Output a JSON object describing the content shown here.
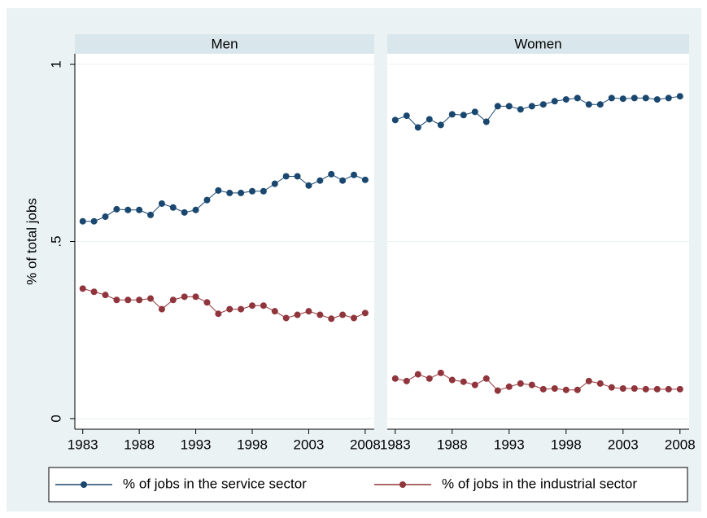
{
  "chart_data": [
    {
      "type": "line",
      "title": "Men",
      "ylabel": "% of total jobs",
      "y_axis_labels": true,
      "x": [
        1983,
        1984,
        1985,
        1986,
        1987,
        1988,
        1989,
        1990,
        1991,
        1992,
        1993,
        1994,
        1995,
        1996,
        1997,
        1998,
        1999,
        2000,
        2001,
        2002,
        2003,
        2004,
        2005,
        2006,
        2007,
        2008
      ],
      "xlim": [
        1982.3,
        2008.8
      ],
      "xticks": [
        1983,
        1988,
        1993,
        1998,
        2003,
        2008
      ],
      "ylim": [
        -0.03,
        1.03
      ],
      "yticks": [
        {
          "value": 0,
          "label": "0"
        },
        {
          "value": 0.5,
          "label": ".5"
        },
        {
          "value": 1,
          "label": "1"
        }
      ],
      "grid": true,
      "legend": "bottom",
      "series": [
        {
          "name": "% of jobs in the service sector",
          "color": "#1a476f",
          "values": [
            0.557,
            0.557,
            0.57,
            0.591,
            0.589,
            0.589,
            0.575,
            0.607,
            0.596,
            0.582,
            0.589,
            0.617,
            0.644,
            0.637,
            0.637,
            0.642,
            0.642,
            0.663,
            0.684,
            0.684,
            0.658,
            0.672,
            0.69,
            0.672,
            0.688,
            0.674
          ]
        },
        {
          "name": "% of jobs in the industrial sector",
          "color": "#90353b",
          "values": [
            0.367,
            0.358,
            0.349,
            0.335,
            0.335,
            0.335,
            0.339,
            0.309,
            0.335,
            0.344,
            0.344,
            0.328,
            0.296,
            0.309,
            0.309,
            0.319,
            0.319,
            0.303,
            0.284,
            0.293,
            0.303,
            0.293,
            0.282,
            0.293,
            0.284,
            0.298
          ]
        }
      ]
    },
    {
      "type": "line",
      "title": "Women",
      "y_axis_labels": false,
      "x": [
        1983,
        1984,
        1985,
        1986,
        1987,
        1988,
        1989,
        1990,
        1991,
        1992,
        1993,
        1994,
        1995,
        1996,
        1997,
        1998,
        1999,
        2000,
        2001,
        2002,
        2003,
        2004,
        2005,
        2006,
        2007,
        2008
      ],
      "xlim": [
        1982.3,
        2008.8
      ],
      "xticks": [
        1983,
        1988,
        1993,
        1998,
        2003,
        2008
      ],
      "ylim": [
        -0.03,
        1.03
      ],
      "yticks": [
        0,
        0.5,
        1
      ],
      "grid": true,
      "series": [
        {
          "color": "#1a476f",
          "values": [
            0.843,
            0.855,
            0.822,
            0.845,
            0.829,
            0.859,
            0.857,
            0.866,
            0.838,
            0.882,
            0.882,
            0.873,
            0.882,
            0.887,
            0.896,
            0.901,
            0.905,
            0.887,
            0.887,
            0.905,
            0.903,
            0.905,
            0.905,
            0.901,
            0.905,
            0.91
          ]
        },
        {
          "color": "#90353b",
          "values": [
            0.113,
            0.106,
            0.125,
            0.113,
            0.129,
            0.109,
            0.104,
            0.095,
            0.113,
            0.079,
            0.09,
            0.099,
            0.095,
            0.083,
            0.085,
            0.081,
            0.081,
            0.106,
            0.099,
            0.088,
            0.085,
            0.085,
            0.083,
            0.083,
            0.083,
            0.083
          ]
        }
      ]
    }
  ]
}
